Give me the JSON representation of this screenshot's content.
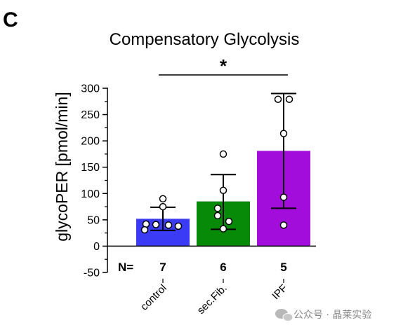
{
  "panel_letter": "C",
  "watermark": {
    "icon": "wechat-icon",
    "text": "公众号 · 晶莱实验"
  },
  "chart_data": {
    "type": "bar",
    "title": "Compensatory Glycolysis",
    "xlabel": "",
    "ylabel": "glycoPER [pmol/min]",
    "ylim": [
      -50,
      300
    ],
    "yticks": [
      -50,
      0,
      50,
      100,
      150,
      200,
      250,
      300
    ],
    "grid": false,
    "categories": [
      "control",
      "sec.Fib.",
      "IPF"
    ],
    "n_label": "N=",
    "n_values": [
      "7",
      "6",
      "5"
    ],
    "values": [
      52,
      85,
      181
    ],
    "error_upper": [
      74,
      136,
      290
    ],
    "error_lower": [
      30,
      32,
      72
    ],
    "colors": [
      "#3b3bf5",
      "#078a07",
      "#a20ddc"
    ],
    "points": [
      [
        90,
        75,
        42,
        41,
        40,
        38,
        31
      ],
      [
        175,
        106,
        72,
        58,
        47,
        33
      ],
      [
        279,
        279,
        214,
        93,
        40
      ]
    ],
    "significance": {
      "label": "*",
      "from": "control",
      "to": "IPF"
    }
  }
}
